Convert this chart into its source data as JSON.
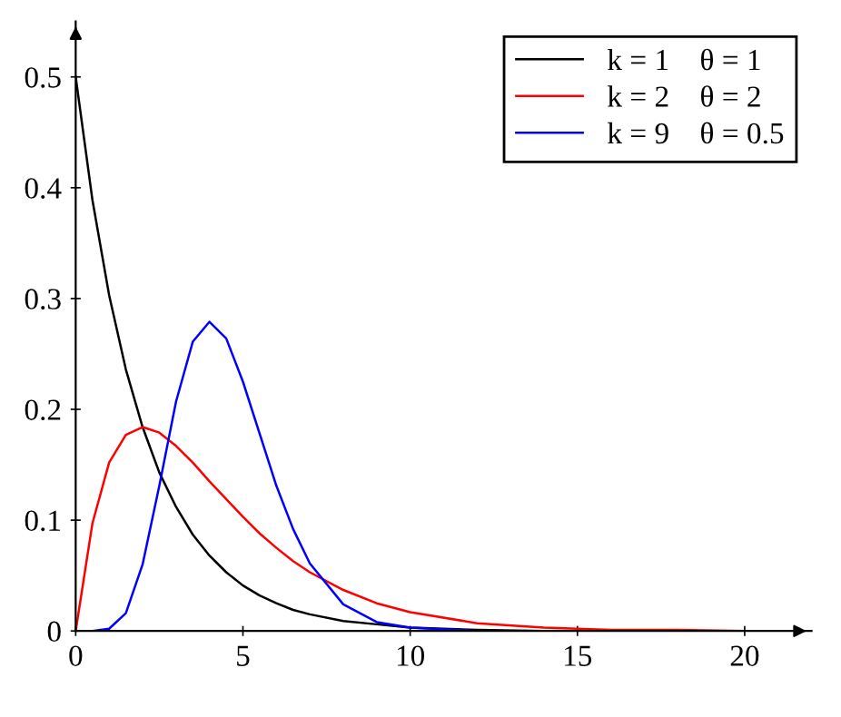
{
  "chart_data": {
    "type": "line",
    "xlim": [
      0,
      22
    ],
    "ylim": [
      0,
      0.55
    ],
    "xticks": [
      0,
      5,
      10,
      15,
      20
    ],
    "yticks": [
      0,
      0.1,
      0.2,
      0.3,
      0.4,
      0.5
    ],
    "grid": false,
    "legend": "top right",
    "marker": "none",
    "line_style": "solid",
    "x": [
      0,
      0.5,
      1,
      1.5,
      2,
      2.5,
      3,
      3.5,
      4,
      4.5,
      5,
      5.5,
      6,
      6.5,
      7,
      8,
      9,
      10,
      12,
      14,
      16,
      18,
      20
    ],
    "series": [
      {
        "name": "k = 1    θ = 1",
        "color": "#000000",
        "values": [
          0.5,
          0.389,
          0.303,
          0.236,
          0.184,
          0.143,
          0.112,
          0.087,
          0.068,
          0.053,
          0.041,
          0.032,
          0.025,
          0.019,
          0.015,
          0.009,
          0.006,
          0.003,
          0.001,
          0,
          0,
          0,
          0
        ]
      },
      {
        "name": "k = 2    θ = 2",
        "color": "#ff0000",
        "values": [
          0,
          0.097,
          0.152,
          0.177,
          0.184,
          0.179,
          0.167,
          0.152,
          0.135,
          0.119,
          0.103,
          0.088,
          0.075,
          0.063,
          0.053,
          0.037,
          0.025,
          0.017,
          0.007,
          0.003,
          0.001,
          0.001,
          0
        ]
      },
      {
        "name": "k = 9    θ = 0.5",
        "color": "#0000ff",
        "values": [
          0,
          0,
          0.002,
          0.016,
          0.06,
          0.131,
          0.207,
          0.261,
          0.279,
          0.264,
          0.225,
          0.178,
          0.131,
          0.092,
          0.061,
          0.024,
          0.008,
          0.003,
          0,
          0,
          null,
          null,
          null
        ]
      }
    ]
  }
}
